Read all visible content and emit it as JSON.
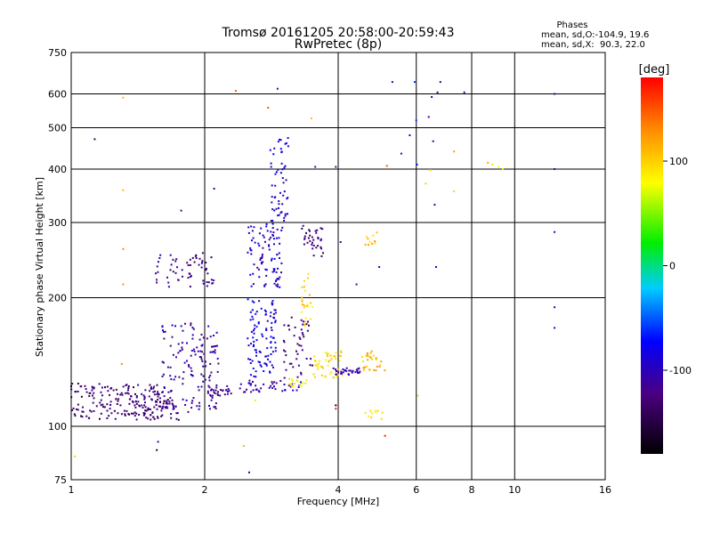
{
  "chart_data": {
    "type": "scatter",
    "title": "Tromsø 20161205 20:58:00-20:59:43",
    "subtitle": "RwPretec (8p)",
    "xlabel": "Frequency [MHz]",
    "ylabel": "Stationary phase Virtual Height [km]",
    "x_scale": "log2",
    "y_scale": "log",
    "xlim": [
      1,
      16
    ],
    "ylim": [
      75,
      750
    ],
    "x_ticks": [
      1,
      2,
      4,
      6,
      8,
      10,
      16
    ],
    "x_tick_labels": [
      "1",
      "2",
      "4",
      "6",
      "8",
      "10",
      "16"
    ],
    "y_ticks": [
      75,
      100,
      200,
      300,
      400,
      500,
      600,
      750
    ],
    "y_tick_labels": [
      "75",
      "100",
      "200",
      "300",
      "400",
      "500",
      "600",
      "750"
    ],
    "grid": true,
    "stats": {
      "heading": "Phases",
      "line_o": "mean, sd,O:-104.9, 19.6",
      "line_x": "mean, sd,X:  90.3, 22.0"
    },
    "colorbar": {
      "label": "[deg]",
      "range": [
        -180,
        180
      ],
      "ticks": [
        100,
        0,
        -100
      ],
      "tick_labels": [
        "100",
        "0",
        "-100"
      ]
    },
    "point_clusters": [
      {
        "f": [
          1.0,
          1.6
        ],
        "h": [
          104,
          126
        ],
        "phase": -130,
        "n": 160
      },
      {
        "f": [
          1.35,
          1.75
        ],
        "h": [
          103,
          118
        ],
        "phase": -125,
        "n": 60
      },
      {
        "f": [
          1.6,
          2.15
        ],
        "h": [
          108,
          175
        ],
        "phase": -110,
        "n": 150
      },
      {
        "f": [
          2.0,
          2.3
        ],
        "h": [
          118,
          125
        ],
        "phase": -120,
        "n": 25
      },
      {
        "f": [
          1.55,
          2.1
        ],
        "h": [
          212,
          255
        ],
        "phase": -120,
        "n": 60
      },
      {
        "f": [
          2.5,
          2.9
        ],
        "h": [
          130,
          200
        ],
        "phase": -85,
        "n": 100
      },
      {
        "f": [
          2.5,
          3.0
        ],
        "h": [
          210,
          300
        ],
        "phase": -95,
        "n": 90
      },
      {
        "f": [
          2.8,
          3.1
        ],
        "h": [
          300,
          480
        ],
        "phase": -92,
        "n": 55
      },
      {
        "f": [
          2.4,
          3.3
        ],
        "h": [
          120,
          130
        ],
        "phase": -110,
        "n": 45
      },
      {
        "f": [
          3.0,
          3.5
        ],
        "h": [
          130,
          180
        ],
        "phase": -125,
        "n": 45
      },
      {
        "f": [
          3.3,
          3.7
        ],
        "h": [
          250,
          295
        ],
        "phase": -125,
        "n": 35
      },
      {
        "f": [
          3.3,
          3.5
        ],
        "h": [
          170,
          230
        ],
        "phase": 100,
        "n": 25
      },
      {
        "f": [
          3.5,
          4.1
        ],
        "h": [
          130,
          150
        ],
        "phase": 95,
        "n": 45
      },
      {
        "f": [
          3.9,
          4.5
        ],
        "h": [
          132,
          137
        ],
        "phase": -105,
        "n": 30
      },
      {
        "f": [
          4.5,
          5.1
        ],
        "h": [
          135,
          150
        ],
        "phase": 110,
        "n": 30
      },
      {
        "f": [
          4.6,
          4.9
        ],
        "h": [
          265,
          285
        ],
        "phase": 110,
        "n": 10
      },
      {
        "f": [
          4.6,
          5.1
        ],
        "h": [
          103,
          109
        ],
        "phase": 80,
        "n": 10
      },
      {
        "f": [
          3.1,
          3.4
        ],
        "h": [
          124,
          130
        ],
        "phase": 80,
        "n": 15
      }
    ],
    "points": [
      {
        "f": 1.13,
        "h": 470,
        "phase": -140
      },
      {
        "f": 1.31,
        "h": 588,
        "phase": 110
      },
      {
        "f": 1.31,
        "h": 357,
        "phase": 110
      },
      {
        "f": 1.31,
        "h": 260,
        "phase": 130
      },
      {
        "f": 1.31,
        "h": 215,
        "phase": 130
      },
      {
        "f": 1.3,
        "h": 140,
        "phase": 130
      },
      {
        "f": 1.56,
        "h": 88,
        "phase": -150
      },
      {
        "f": 1.57,
        "h": 92,
        "phase": -110
      },
      {
        "f": 1.77,
        "h": 320,
        "phase": -120
      },
      {
        "f": 1.02,
        "h": 85,
        "phase": 60
      },
      {
        "f": 2.1,
        "h": 360,
        "phase": -110
      },
      {
        "f": 2.45,
        "h": 90,
        "phase": 110
      },
      {
        "f": 2.52,
        "h": 78,
        "phase": -100
      },
      {
        "f": 2.35,
        "h": 610,
        "phase": 150
      },
      {
        "f": 2.78,
        "h": 557,
        "phase": 150
      },
      {
        "f": 2.92,
        "h": 617,
        "phase": -110
      },
      {
        "f": 2.6,
        "h": 115,
        "phase": 70
      },
      {
        "f": 3.48,
        "h": 526,
        "phase": 110
      },
      {
        "f": 3.55,
        "h": 405,
        "phase": -120
      },
      {
        "f": 3.95,
        "h": 405,
        "phase": -120
      },
      {
        "f": 3.95,
        "h": 110,
        "phase": 170
      },
      {
        "f": 3.95,
        "h": 112,
        "phase": -170
      },
      {
        "f": 4.05,
        "h": 270,
        "phase": -110
      },
      {
        "f": 4.4,
        "h": 215,
        "phase": -120
      },
      {
        "f": 4.95,
        "h": 236,
        "phase": -90
      },
      {
        "f": 5.1,
        "h": 95,
        "phase": 170
      },
      {
        "f": 5.15,
        "h": 407,
        "phase": 150
      },
      {
        "f": 5.3,
        "h": 640,
        "phase": -110
      },
      {
        "f": 5.55,
        "h": 435,
        "phase": -110
      },
      {
        "f": 5.8,
        "h": 480,
        "phase": -100
      },
      {
        "f": 5.95,
        "h": 640,
        "phase": -60
      },
      {
        "f": 6.0,
        "h": 520,
        "phase": -60
      },
      {
        "f": 6.02,
        "h": 410,
        "phase": -70
      },
      {
        "f": 6.05,
        "h": 118,
        "phase": 60
      },
      {
        "f": 6.3,
        "h": 370,
        "phase": 100
      },
      {
        "f": 6.4,
        "h": 530,
        "phase": -100
      },
      {
        "f": 6.5,
        "h": 590,
        "phase": -110
      },
      {
        "f": 6.55,
        "h": 465,
        "phase": -130
      },
      {
        "f": 6.6,
        "h": 330,
        "phase": -110
      },
      {
        "f": 6.65,
        "h": 236,
        "phase": -100
      },
      {
        "f": 6.7,
        "h": 605,
        "phase": -110
      },
      {
        "f": 6.8,
        "h": 640,
        "phase": -130
      },
      {
        "f": 6.45,
        "h": 398,
        "phase": 100
      },
      {
        "f": 7.3,
        "h": 355,
        "phase": 60
      },
      {
        "f": 7.3,
        "h": 440,
        "phase": 120
      },
      {
        "f": 7.7,
        "h": 605,
        "phase": -110
      },
      {
        "f": 8.7,
        "h": 414,
        "phase": 120
      },
      {
        "f": 8.9,
        "h": 410,
        "phase": 90
      },
      {
        "f": 9.2,
        "h": 405,
        "phase": 80
      },
      {
        "f": 9.4,
        "h": 400,
        "phase": 70
      },
      {
        "f": 12.3,
        "h": 600,
        "phase": -130
      },
      {
        "f": 12.3,
        "h": 400,
        "phase": -110
      },
      {
        "f": 12.3,
        "h": 285,
        "phase": -90
      },
      {
        "f": 12.3,
        "h": 190,
        "phase": -100
      },
      {
        "f": 12.3,
        "h": 170,
        "phase": -90
      }
    ]
  }
}
